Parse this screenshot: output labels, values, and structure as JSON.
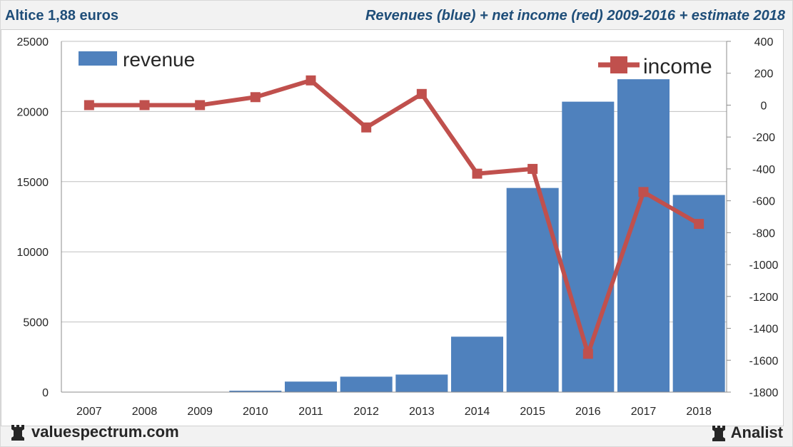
{
  "header": {
    "title_left": "Altice 1,88 euros",
    "title_right": "Revenues (blue) + net income (red) 2009-2016 + estimate 2018"
  },
  "footer": {
    "site": "valuespectrum.com",
    "brand": "Analist",
    "site_icon": "rook-icon",
    "brand_icon": "rook-icon"
  },
  "colors": {
    "revenue": "#4f81bd",
    "income": "#c0504d",
    "title": "#1f4e79"
  },
  "chart_data": {
    "type": "bar",
    "categories": [
      "2007",
      "2008",
      "2009",
      "2010",
      "2011",
      "2012",
      "2013",
      "2014",
      "2015",
      "2016",
      "2017",
      "2018"
    ],
    "series": [
      {
        "name": "revenue",
        "type": "bar",
        "axis": "left",
        "values": [
          0,
          0,
          0,
          100,
          750,
          1100,
          1250,
          3950,
          14550,
          20700,
          22300,
          14050
        ]
      },
      {
        "name": "income",
        "type": "line",
        "axis": "right",
        "values": [
          0,
          0,
          0,
          50,
          155,
          -140,
          70,
          -430,
          -400,
          -1560,
          -545,
          -745
        ]
      }
    ],
    "ylim_left": [
      0,
      25000
    ],
    "yticks_left": [
      "0",
      "5000",
      "10000",
      "15000",
      "20000",
      "25000"
    ],
    "ylim_right": [
      -1800,
      400
    ],
    "yticks_right": [
      "-1800",
      "-1600",
      "-1400",
      "-1200",
      "-1000",
      "-800",
      "-600",
      "-400",
      "-200",
      "0",
      "200",
      "400"
    ],
    "grid": true,
    "legend": [
      "top-left",
      "top-right"
    ]
  }
}
